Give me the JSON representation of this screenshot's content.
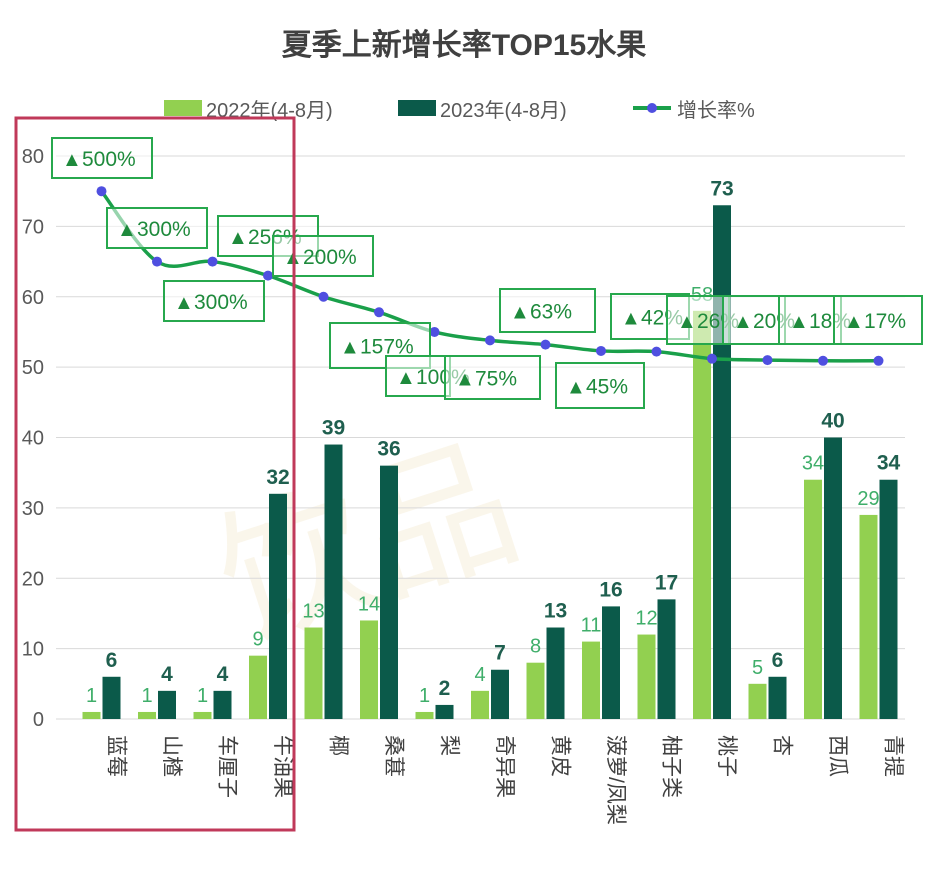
{
  "chart_data": {
    "type": "bar",
    "title": "夏季上新增长率TOP15水果",
    "categories": [
      "蓝莓",
      "山楂",
      "车厘子",
      "牛油果",
      "椰",
      "桑葚",
      "梨",
      "奇异果",
      "黄皮",
      "菠萝/凤梨",
      "柚子类",
      "桃子",
      "杏",
      "西瓜",
      "青提"
    ],
    "series": [
      {
        "name": "2022年(4-8月)",
        "values": [
          1,
          1,
          1,
          9,
          13,
          14,
          1,
          4,
          8,
          11,
          12,
          58,
          5,
          34,
          29
        ],
        "color": "#92d050"
      },
      {
        "name": "2023年(4-8月)",
        "values": [
          6,
          4,
          4,
          32,
          39,
          36,
          2,
          7,
          13,
          16,
          17,
          73,
          6,
          40,
          34
        ],
        "color": "#0b5a4a"
      }
    ],
    "growth_line": {
      "name": "增长率%",
      "labels": [
        "500%",
        "300%",
        "300%",
        "256%",
        "200%",
        "157%",
        "100%",
        "75%",
        "63%",
        "45%",
        "42%",
        "26%",
        "20%",
        "18%",
        "17%"
      ],
      "positions": [
        75,
        65,
        65,
        63,
        60,
        57.8,
        55,
        53.8,
        53.2,
        52.3,
        52.2,
        51.2,
        51,
        50.9,
        50.9
      ],
      "color": "#1aa04a",
      "marker_color": "#4f4fe0"
    },
    "ylim": [
      0,
      80
    ],
    "yticks": [
      0,
      10,
      20,
      30,
      40,
      50,
      60,
      70,
      80
    ],
    "legend_position": "top",
    "highlight_categories": [
      "蓝莓",
      "山楂",
      "车厘子",
      "牛油果"
    ]
  }
}
